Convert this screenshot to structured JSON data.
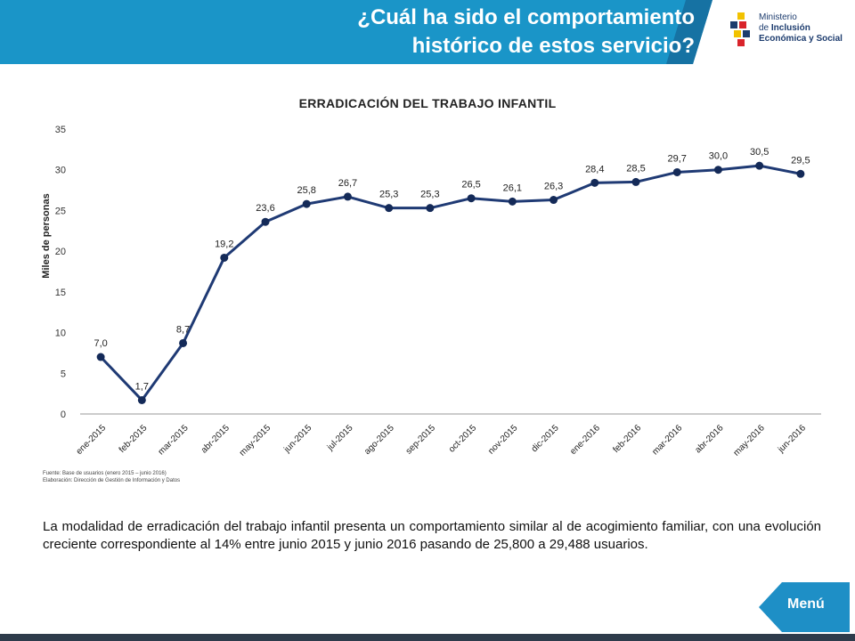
{
  "header": {
    "title_line1": "¿Cuál ha sido el comportamiento",
    "title_line2": "histórico de estos servicio?"
  },
  "logo": {
    "line1": "Ministerio",
    "line2_prefix": "de",
    "line2_bold": "Inclusión",
    "line3": "Económica y Social"
  },
  "chart_data": {
    "type": "line",
    "title": "ERRADICACIÓN DEL TRABAJO INFANTIL",
    "ylabel": "Miles de personas",
    "xlabel": "",
    "categories": [
      "ene-2015",
      "feb-2015",
      "mar-2015",
      "abr-2015",
      "may-2015",
      "jun-2015",
      "jul-2015",
      "ago-2015",
      "sep-2015",
      "oct-2015",
      "nov-2015",
      "dic-2015",
      "ene-2016",
      "feb-2016",
      "mar-2016",
      "abr-2016",
      "may-2016",
      "jun-2016"
    ],
    "values": [
      7.0,
      1.7,
      8.7,
      19.2,
      23.6,
      25.8,
      26.7,
      25.3,
      25.3,
      26.5,
      26.1,
      26.3,
      28.4,
      28.5,
      29.7,
      30.0,
      30.5,
      29.5
    ],
    "labels": [
      "7,0",
      "1,7",
      "8,7",
      "19,2",
      "23,6",
      "25,8",
      "26,7",
      "25,3",
      "25,3",
      "26,5",
      "26,1",
      "26,3",
      "28,4",
      "28,5",
      "29,7",
      "30,0",
      "30,5",
      "29,5"
    ],
    "ylim": [
      0,
      35
    ],
    "yticks": [
      "0",
      "5",
      "10",
      "15",
      "20",
      "25",
      "30",
      "35"
    ],
    "grid": false,
    "line_color": "#1f3a74",
    "marker_color": "#142a58"
  },
  "footnote": {
    "line1": "Fuente: Base de usuarios (enero 2015 – junio 2016)",
    "line2": "Elaboración: Dirección de Gestión de Información y Datos"
  },
  "description": "La modalidad de erradicación del trabajo infantil presenta un comportamiento similar al de acogimiento familiar, con una evolución creciente correspondiente al 14% entre junio 2015 y junio 2016 pasando de 25,800 a 29,488 usuarios.",
  "menu": {
    "label": "Menú"
  },
  "colors": {
    "banner": "#1a95c8",
    "banner_dark": "#1672a3",
    "menu": "#1e8fc6"
  }
}
